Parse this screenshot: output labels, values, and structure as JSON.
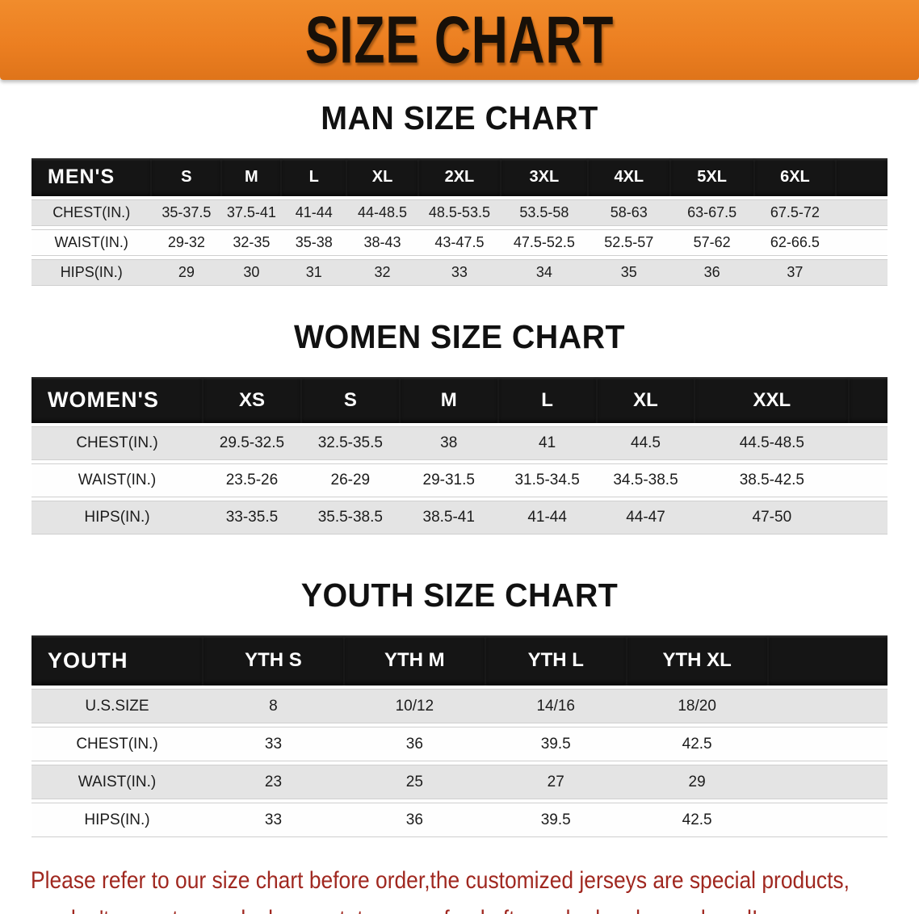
{
  "banner": {
    "title": "SIZE CHART"
  },
  "colors": {
    "banner_orange": "#ec7f21",
    "banner_orange_light": "#f18c2c",
    "banner_orange_dark": "#df741a",
    "table_header_black": "#151515",
    "row_gray": "#e4e4e4",
    "disclaimer_red": "#a02820"
  },
  "sections": [
    {
      "title": "MAN SIZE CHART",
      "header_label": "MEN'S",
      "columns": [
        "S",
        "M",
        "L",
        "XL",
        "2XL",
        "3XL",
        "4XL",
        "5XL",
        "6XL"
      ],
      "rows": [
        {
          "label": "CHEST(IN.)",
          "values": [
            "35-37.5",
            "37.5-41",
            "41-44",
            "44-48.5",
            "48.5-53.5",
            "53.5-58",
            "58-63",
            "63-67.5",
            "67.5-72"
          ]
        },
        {
          "label": "WAIST(IN.)",
          "values": [
            "29-32",
            "32-35",
            "35-38",
            "38-43",
            "43-47.5",
            "47.5-52.5",
            "52.5-57",
            "57-62",
            "62-66.5"
          ]
        },
        {
          "label": "HIPS(IN.)",
          "values": [
            "29",
            "30",
            "31",
            "32",
            "33",
            "34",
            "35",
            "36",
            "37"
          ]
        }
      ]
    },
    {
      "title": "WOMEN SIZE CHART",
      "header_label": "WOMEN'S",
      "columns": [
        "XS",
        "S",
        "M",
        "L",
        "XL",
        "XXL"
      ],
      "rows": [
        {
          "label": "CHEST(IN.)",
          "values": [
            "29.5-32.5",
            "32.5-35.5",
            "38",
            "41",
            "44.5",
            "44.5-48.5"
          ]
        },
        {
          "label": "WAIST(IN.)",
          "values": [
            "23.5-26",
            "26-29",
            "29-31.5",
            "31.5-34.5",
            "34.5-38.5",
            "38.5-42.5"
          ]
        },
        {
          "label": "HIPS(IN.)",
          "values": [
            "33-35.5",
            "35.5-38.5",
            "38.5-41",
            "41-44",
            "44-47",
            "47-50"
          ]
        }
      ]
    },
    {
      "title": "YOUTH SIZE CHART",
      "header_label": "YOUTH",
      "columns": [
        "YTH S",
        "YTH M",
        "YTH L",
        "YTH XL"
      ],
      "rows": [
        {
          "label": "U.S.SIZE",
          "values": [
            "8",
            "10/12",
            "14/16",
            "18/20"
          ]
        },
        {
          "label": "CHEST(IN.)",
          "values": [
            "33",
            "36",
            "39.5",
            "42.5"
          ]
        },
        {
          "label": "WAIST(IN.)",
          "values": [
            "23",
            "25",
            "27",
            "29"
          ]
        },
        {
          "label": "HIPS(IN.)",
          "values": [
            "33",
            "36",
            "39.5",
            "42.5"
          ]
        }
      ]
    }
  ],
  "disclaimer": {
    "line1": "Please refer to our size chart before order,the customized jerseys are special products,",
    "line2": "we don't accept cancel, change, teturn or refund after order has been placed!"
  }
}
